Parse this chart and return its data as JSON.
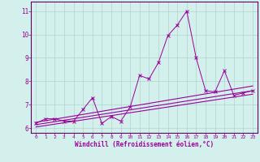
{
  "xlabel": "Windchill (Refroidissement éolien,°C)",
  "background_color": "#d4f0ec",
  "grid_color": "#b0d4ce",
  "line_color": "#990099",
  "spine_color": "#660066",
  "xlim": [
    -0.5,
    23.5
  ],
  "ylim": [
    5.8,
    11.4
  ],
  "yticks": [
    6,
    7,
    8,
    9,
    10,
    11
  ],
  "xticks": [
    0,
    1,
    2,
    3,
    4,
    5,
    6,
    7,
    8,
    9,
    10,
    11,
    12,
    13,
    14,
    15,
    16,
    17,
    18,
    19,
    20,
    21,
    22,
    23
  ],
  "series1_x": [
    0,
    1,
    2,
    3,
    4,
    5,
    6,
    7,
    8,
    9,
    10,
    11,
    12,
    13,
    14,
    15,
    16,
    17,
    18,
    19,
    20,
    21,
    22,
    23
  ],
  "series1_y": [
    6.2,
    6.4,
    6.4,
    6.3,
    6.3,
    6.8,
    7.3,
    6.2,
    6.5,
    6.3,
    6.9,
    8.25,
    8.1,
    8.8,
    9.95,
    10.4,
    11.0,
    9.0,
    7.6,
    7.55,
    8.45,
    7.4,
    7.5,
    7.6
  ],
  "series2_x": [
    0,
    23
  ],
  "series2_y": [
    6.25,
    7.8
  ],
  "series3_x": [
    0,
    23
  ],
  "series3_y": [
    6.15,
    7.6
  ],
  "series4_x": [
    0,
    23
  ],
  "series4_y": [
    6.05,
    7.45
  ]
}
